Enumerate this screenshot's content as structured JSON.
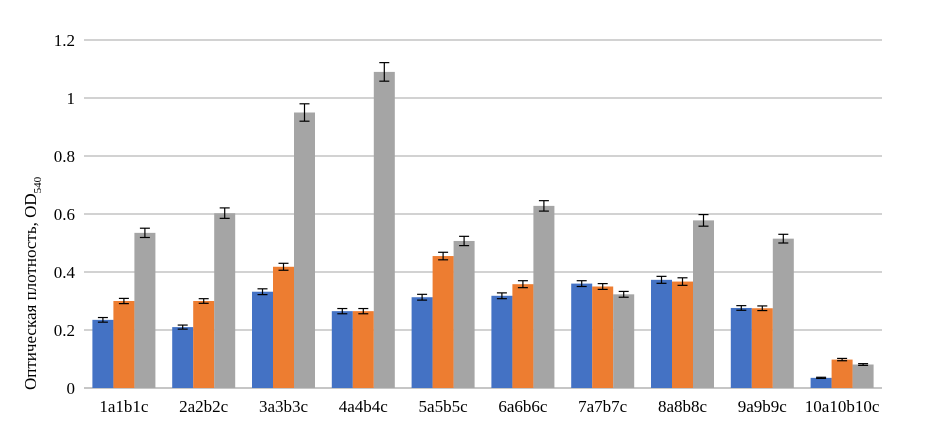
{
  "chart_data": {
    "type": "bar",
    "title": "",
    "xlabel": "",
    "ylabel": "Оптическая плотность, OD",
    "ylabel_subscript": "540",
    "ylim": [
      0,
      1.2
    ],
    "yticks": [
      0,
      0.2,
      0.4,
      0.6,
      0.8,
      1,
      1.2
    ],
    "ytick_labels": [
      "0",
      "0.2",
      "0.4",
      "0.6",
      "0.8",
      "1",
      "1.2"
    ],
    "grid": true,
    "legend": "none",
    "categories": [
      "1a1b1c",
      "2a2b2c",
      "3a3b3c",
      "4a4b4c",
      "5a5b5c",
      "6a6b6c",
      "7a7b7c",
      "8a8b8c",
      "9a9b9c",
      "10a10b10c"
    ],
    "series": [
      {
        "color": "#4472c4",
        "values": [
          0.235,
          0.21,
          0.332,
          0.265,
          0.313,
          0.318,
          0.36,
          0.373,
          0.276,
          0.035
        ],
        "errors": [
          0.008,
          0.007,
          0.01,
          0.009,
          0.01,
          0.01,
          0.01,
          0.012,
          0.008,
          0.002
        ]
      },
      {
        "color": "#ed7d31",
        "values": [
          0.3,
          0.3,
          0.418,
          0.265,
          0.455,
          0.358,
          0.35,
          0.367,
          0.275,
          0.098
        ],
        "errors": [
          0.009,
          0.008,
          0.012,
          0.009,
          0.013,
          0.012,
          0.01,
          0.013,
          0.008,
          0.004
        ]
      },
      {
        "color": "#a5a5a5",
        "values": [
          0.535,
          0.603,
          0.95,
          1.09,
          0.507,
          0.628,
          0.323,
          0.578,
          0.515,
          0.081
        ],
        "errors": [
          0.016,
          0.018,
          0.03,
          0.032,
          0.016,
          0.018,
          0.01,
          0.02,
          0.015,
          0.003
        ]
      }
    ]
  }
}
